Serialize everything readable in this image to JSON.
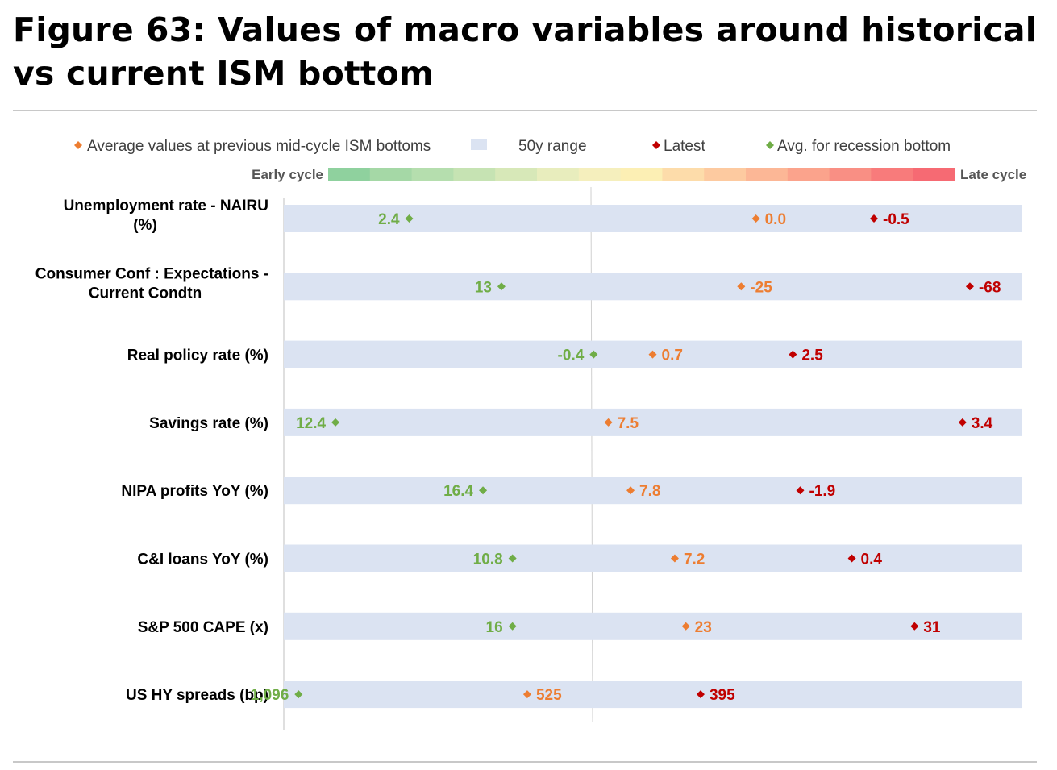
{
  "title": "Figure 63: Values of macro variables around historical vs current ISM bottom",
  "colors": {
    "average": "#ed7d31",
    "latest": "#c00000",
    "recession": "#70ad47",
    "range": "#dbe3f2",
    "gradient": [
      "#8fd19e",
      "#a5d8a6",
      "#b5deae",
      "#c6e3b3",
      "#d7e8b8",
      "#e8edbd",
      "#f5efbd",
      "#fcefb4",
      "#fddcaa",
      "#fdcaa0",
      "#fcb796",
      "#fba38c",
      "#f98f84",
      "#f87b7b",
      "#f66a73"
    ]
  },
  "chart_data": {
    "type": "dot-range",
    "legend": [
      {
        "key": "average",
        "label": "Average values at previous mid-cycle ISM bottoms",
        "marker": "diamond"
      },
      {
        "key": "range",
        "label": "50y range",
        "marker": "box"
      },
      {
        "key": "latest",
        "label": "Latest",
        "marker": "diamond"
      },
      {
        "key": "recession",
        "label": "Avg. for recession bottom",
        "marker": "diamond"
      }
    ],
    "scale_left_label": "Early cycle",
    "scale_right_label": "Late cycle",
    "rows": [
      {
        "label_lines": [
          "Unemployment rate - NAIRU",
          "(%)"
        ],
        "recession": {
          "label": "2.4",
          "pos": 0.17
        },
        "average": {
          "label": "0.0",
          "pos": 0.64
        },
        "latest": {
          "label": "-0.5",
          "pos": 0.8
        }
      },
      {
        "label_lines": [
          "Consumer Conf : Expectations -",
          "Current Condtn"
        ],
        "recession": {
          "label": "13",
          "pos": 0.295
        },
        "average": {
          "label": "-25",
          "pos": 0.62
        },
        "latest": {
          "label": "-68",
          "pos": 0.93
        }
      },
      {
        "label_lines": [
          "Real policy rate (%)"
        ],
        "recession": {
          "label": "-0.4",
          "pos": 0.42
        },
        "average": {
          "label": "0.7",
          "pos": 0.5
        },
        "latest": {
          "label": "2.5",
          "pos": 0.69
        }
      },
      {
        "label_lines": [
          "Savings rate (%)"
        ],
        "recession": {
          "label": "12.4",
          "pos": 0.07
        },
        "average": {
          "label": "7.5",
          "pos": 0.44
        },
        "latest": {
          "label": "3.4",
          "pos": 0.92
        }
      },
      {
        "label_lines": [
          "NIPA profits YoY (%)"
        ],
        "recession": {
          "label": "16.4",
          "pos": 0.27
        },
        "average": {
          "label": "7.8",
          "pos": 0.47
        },
        "latest": {
          "label": "-1.9",
          "pos": 0.7
        }
      },
      {
        "label_lines": [
          "C&I loans YoY (%)"
        ],
        "recession": {
          "label": "10.8",
          "pos": 0.31
        },
        "average": {
          "label": "7.2",
          "pos": 0.53
        },
        "latest": {
          "label": "0.4",
          "pos": 0.77
        }
      },
      {
        "label_lines": [
          "S&P 500 CAPE (x)"
        ],
        "recession": {
          "label": "16",
          "pos": 0.31
        },
        "average": {
          "label": "23",
          "pos": 0.545
        },
        "latest": {
          "label": "31",
          "pos": 0.855
        }
      },
      {
        "label_lines": [
          "US HY spreads (bp)"
        ],
        "recession": {
          "label": "1,096",
          "pos": 0.02
        },
        "average": {
          "label": "525",
          "pos": 0.33
        },
        "latest": {
          "label": "395",
          "pos": 0.565
        }
      }
    ]
  }
}
